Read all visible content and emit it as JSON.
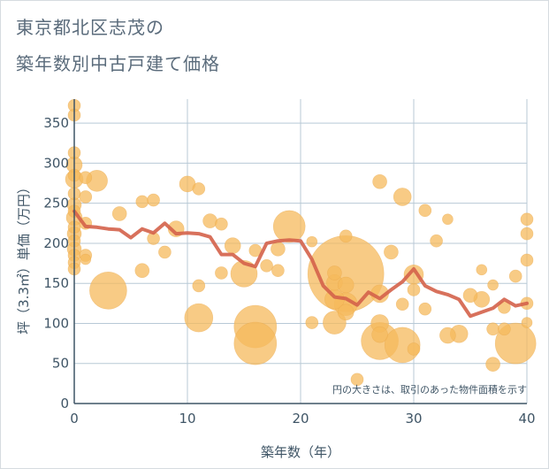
{
  "title_line1": "東京都北区志茂の",
  "title_line2": "築年数別中古戸建て価格",
  "chart_data": {
    "type": "scatter",
    "xlabel": "築年数（年）",
    "ylabel": "坪（3.3㎡）単価（万円）",
    "xlim": [
      0,
      40
    ],
    "ylim": [
      0,
      380
    ],
    "x_ticks": [
      0,
      10,
      20,
      30,
      40
    ],
    "y_ticks": [
      0,
      50,
      100,
      150,
      200,
      250,
      300,
      350
    ],
    "annotation": "円の大きさは、取引のあった物件面積を示す",
    "grid": true,
    "colors": {
      "bubble": "#f5b95c",
      "line": "#d4624a",
      "grid": "#b8c9d6",
      "axis": "#3f5566"
    },
    "bubbles": [
      {
        "x": 0,
        "y": 372,
        "s": 7
      },
      {
        "x": 0,
        "y": 360,
        "s": 7
      },
      {
        "x": 0,
        "y": 313,
        "s": 7
      },
      {
        "x": 0,
        "y": 298,
        "s": 9
      },
      {
        "x": 0,
        "y": 285,
        "s": 7
      },
      {
        "x": 0,
        "y": 280,
        "s": 10
      },
      {
        "x": 0,
        "y": 262,
        "s": 7
      },
      {
        "x": 0,
        "y": 248,
        "s": 8
      },
      {
        "x": 0,
        "y": 240,
        "s": 7
      },
      {
        "x": 0,
        "y": 232,
        "s": 9
      },
      {
        "x": 0,
        "y": 220,
        "s": 7
      },
      {
        "x": 0,
        "y": 212,
        "s": 8
      },
      {
        "x": 0,
        "y": 203,
        "s": 7
      },
      {
        "x": 0,
        "y": 193,
        "s": 8
      },
      {
        "x": 0,
        "y": 185,
        "s": 7
      },
      {
        "x": 0,
        "y": 176,
        "s": 7
      },
      {
        "x": 0,
        "y": 168,
        "s": 7
      },
      {
        "x": 1,
        "y": 282,
        "s": 7
      },
      {
        "x": 1,
        "y": 258,
        "s": 7
      },
      {
        "x": 1,
        "y": 225,
        "s": 7
      },
      {
        "x": 1,
        "y": 185,
        "s": 7
      },
      {
        "x": 1,
        "y": 180,
        "s": 6
      },
      {
        "x": 2,
        "y": 278,
        "s": 12
      },
      {
        "x": 3,
        "y": 141,
        "s": 21
      },
      {
        "x": 4,
        "y": 237,
        "s": 8
      },
      {
        "x": 6,
        "y": 252,
        "s": 7
      },
      {
        "x": 6,
        "y": 166,
        "s": 8
      },
      {
        "x": 7,
        "y": 254,
        "s": 7
      },
      {
        "x": 7,
        "y": 206,
        "s": 7
      },
      {
        "x": 8,
        "y": 189,
        "s": 7
      },
      {
        "x": 9,
        "y": 218,
        "s": 9
      },
      {
        "x": 10,
        "y": 274,
        "s": 9
      },
      {
        "x": 11,
        "y": 268,
        "s": 7
      },
      {
        "x": 11,
        "y": 147,
        "s": 7
      },
      {
        "x": 11,
        "y": 107,
        "s": 16
      },
      {
        "x": 12,
        "y": 228,
        "s": 8
      },
      {
        "x": 13,
        "y": 224,
        "s": 7
      },
      {
        "x": 13,
        "y": 163,
        "s": 7
      },
      {
        "x": 14,
        "y": 197,
        "s": 9
      },
      {
        "x": 15,
        "y": 162,
        "s": 15
      },
      {
        "x": 16,
        "y": 191,
        "s": 7
      },
      {
        "x": 16,
        "y": 96,
        "s": 24
      },
      {
        "x": 16,
        "y": 75,
        "s": 24
      },
      {
        "x": 17,
        "y": 172,
        "s": 7
      },
      {
        "x": 18,
        "y": 193,
        "s": 8
      },
      {
        "x": 18,
        "y": 166,
        "s": 7
      },
      {
        "x": 19,
        "y": 221,
        "s": 18
      },
      {
        "x": 21,
        "y": 202,
        "s": 6
      },
      {
        "x": 21,
        "y": 101,
        "s": 7
      },
      {
        "x": 23,
        "y": 163,
        "s": 8
      },
      {
        "x": 23,
        "y": 151,
        "s": 9
      },
      {
        "x": 23,
        "y": 130,
        "s": 11
      },
      {
        "x": 23,
        "y": 101,
        "s": 13
      },
      {
        "x": 24,
        "y": 209,
        "s": 7
      },
      {
        "x": 24,
        "y": 162,
        "s": 43
      },
      {
        "x": 24,
        "y": 148,
        "s": 9
      },
      {
        "x": 24,
        "y": 124,
        "s": 13
      },
      {
        "x": 24,
        "y": 114,
        "s": 9
      },
      {
        "x": 25,
        "y": 30,
        "s": 7
      },
      {
        "x": 27,
        "y": 277,
        "s": 8
      },
      {
        "x": 27,
        "y": 137,
        "s": 10
      },
      {
        "x": 27,
        "y": 100,
        "s": 10
      },
      {
        "x": 27,
        "y": 86,
        "s": 9
      },
      {
        "x": 27,
        "y": 78,
        "s": 21
      },
      {
        "x": 28,
        "y": 189,
        "s": 8
      },
      {
        "x": 29,
        "y": 258,
        "s": 10
      },
      {
        "x": 29,
        "y": 124,
        "s": 7
      },
      {
        "x": 29,
        "y": 73,
        "s": 20
      },
      {
        "x": 30,
        "y": 161,
        "s": 11
      },
      {
        "x": 30,
        "y": 142,
        "s": 7
      },
      {
        "x": 30,
        "y": 68,
        "s": 7
      },
      {
        "x": 31,
        "y": 241,
        "s": 7
      },
      {
        "x": 31,
        "y": 118,
        "s": 7
      },
      {
        "x": 32,
        "y": 203,
        "s": 7
      },
      {
        "x": 33,
        "y": 230,
        "s": 6
      },
      {
        "x": 33,
        "y": 85,
        "s": 9
      },
      {
        "x": 34,
        "y": 87,
        "s": 10
      },
      {
        "x": 35,
        "y": 135,
        "s": 8
      },
      {
        "x": 36,
        "y": 167,
        "s": 6
      },
      {
        "x": 36,
        "y": 130,
        "s": 9
      },
      {
        "x": 37,
        "y": 148,
        "s": 6
      },
      {
        "x": 37,
        "y": 93,
        "s": 7
      },
      {
        "x": 37,
        "y": 49,
        "s": 8
      },
      {
        "x": 38,
        "y": 120,
        "s": 7
      },
      {
        "x": 38,
        "y": 93,
        "s": 7
      },
      {
        "x": 39,
        "y": 159,
        "s": 7
      },
      {
        "x": 39,
        "y": 75,
        "s": 23
      },
      {
        "x": 40,
        "y": 230,
        "s": 7
      },
      {
        "x": 40,
        "y": 212,
        "s": 7
      },
      {
        "x": 40,
        "y": 179,
        "s": 7
      },
      {
        "x": 40,
        "y": 125,
        "s": 7
      },
      {
        "x": 40,
        "y": 101,
        "s": 6
      }
    ],
    "series": [
      {
        "x": [
          0,
          1,
          2,
          3,
          4,
          5,
          6,
          7,
          8,
          9,
          10,
          11,
          12,
          13,
          14,
          15,
          16,
          17,
          18,
          19,
          20,
          21,
          22,
          23,
          24,
          25,
          26,
          27,
          28,
          29,
          30,
          31,
          32,
          33,
          34,
          35,
          36,
          37,
          38,
          39,
          40
        ],
        "values": [
          240,
          221,
          220,
          218,
          217,
          207,
          218,
          213,
          225,
          212,
          213,
          212,
          208,
          186,
          186,
          175,
          171,
          200,
          203,
          204,
          203,
          180,
          147,
          133,
          131,
          123,
          139,
          131,
          142,
          152,
          168,
          147,
          140,
          136,
          130,
          109,
          114,
          119,
          130,
          122,
          125
        ]
      }
    ]
  }
}
